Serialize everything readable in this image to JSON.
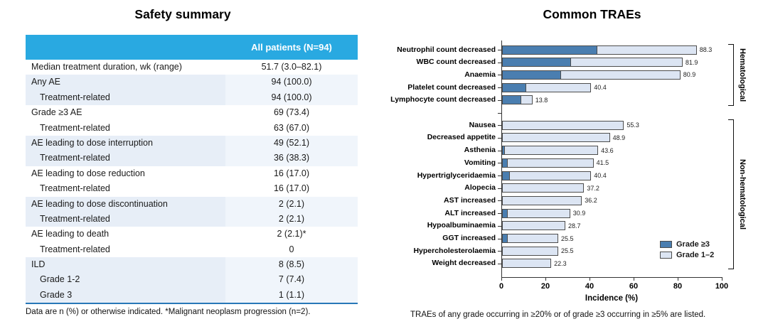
{
  "left_panel": {
    "title": "Safety summary",
    "table": {
      "header": "All patients (N=94)",
      "rows": [
        {
          "label": "Median treatment duration, wk (range)",
          "value": "51.7 (3.0–82.1)",
          "indent": false,
          "shaded": false
        },
        {
          "label": "Any AE",
          "value": "94 (100.0)",
          "indent": false,
          "shaded": true
        },
        {
          "label": "Treatment-related",
          "value": "94 (100.0)",
          "indent": true,
          "shaded": true
        },
        {
          "label": "Grade ≥3 AE",
          "value": "69 (73.4)",
          "indent": false,
          "shaded": false
        },
        {
          "label": "Treatment-related",
          "value": "63 (67.0)",
          "indent": true,
          "shaded": false
        },
        {
          "label": "AE leading to dose interruption",
          "value": "49 (52.1)",
          "indent": false,
          "shaded": true
        },
        {
          "label": "Treatment-related",
          "value": "36 (38.3)",
          "indent": true,
          "shaded": true
        },
        {
          "label": "AE leading to dose reduction",
          "value": "16 (17.0)",
          "indent": false,
          "shaded": false
        },
        {
          "label": "Treatment-related",
          "value": "16 (17.0)",
          "indent": true,
          "shaded": false
        },
        {
          "label": "AE leading to dose discontinuation",
          "value": "2 (2.1)",
          "indent": false,
          "shaded": true
        },
        {
          "label": "Treatment-related",
          "value": "2 (2.1)",
          "indent": true,
          "shaded": true
        },
        {
          "label": "AE leading to death",
          "value": "2 (2.1)*",
          "indent": false,
          "shaded": false
        },
        {
          "label": "Treatment-related",
          "value": "0",
          "indent": true,
          "shaded": false
        },
        {
          "label": "ILD",
          "value": "8 (8.5)",
          "indent": false,
          "shaded": true
        },
        {
          "label": "Grade 1-2",
          "value": "7 (7.4)",
          "indent": true,
          "shaded": true
        },
        {
          "label": "Grade 3",
          "value": "1 (1.1)",
          "indent": true,
          "shaded": true
        }
      ]
    },
    "footnote": "Data are n (%) or otherwise indicated. *Malignant neoplasm progression (n=2)."
  },
  "right_panel": {
    "title": "Common TRAEs",
    "footnote": "TRAEs of any grade occurring in ≥20% or of grade ≥3 occurring in ≥5% are listed."
  },
  "chart_data": {
    "type": "bar",
    "orientation": "horizontal",
    "stacked": true,
    "title": "Common TRAEs",
    "xlabel": "Incidence (%)",
    "xlim": [
      0,
      100
    ],
    "x_ticks": [
      0,
      20,
      40,
      60,
      80,
      100
    ],
    "legend": [
      {
        "name": "Grade ≥3",
        "color": "#4a7eb0"
      },
      {
        "name": "Grade 1–2",
        "color": "#dce5f3"
      }
    ],
    "legend_position": "lower-right",
    "groups": [
      {
        "name": "Hematological",
        "rows": [
          {
            "category": "Neutrophil count decreased",
            "total": 88.3,
            "grade3": 43.0
          },
          {
            "category": "WBC count decreased",
            "total": 81.9,
            "grade3": 31.0
          },
          {
            "category": "Anaemia",
            "total": 80.9,
            "grade3": 26.5
          },
          {
            "category": "Platelet count decreased",
            "total": 40.4,
            "grade3": 10.5
          },
          {
            "category": "Lymphocyte count decreased",
            "total": 13.8,
            "grade3": 8.5
          }
        ]
      },
      {
        "name": "Non-hematological",
        "rows": [
          {
            "category": "Nausea",
            "total": 55.3,
            "grade3": 0
          },
          {
            "category": "Decreased appetite",
            "total": 48.9,
            "grade3": 0
          },
          {
            "category": "Asthenia",
            "total": 43.6,
            "grade3": 1.1
          },
          {
            "category": "Vomiting",
            "total": 41.5,
            "grade3": 2.1
          },
          {
            "category": "Hypertriglyceridaemia",
            "total": 40.4,
            "grade3": 3.2
          },
          {
            "category": "Alopecia",
            "total": 37.2,
            "grade3": 0
          },
          {
            "category": "AST increased",
            "total": 36.2,
            "grade3": 0
          },
          {
            "category": "ALT increased",
            "total": 30.9,
            "grade3": 2.1
          },
          {
            "category": "Hypoalbuminaemia",
            "total": 28.7,
            "grade3": 0
          },
          {
            "category": "GGT increased",
            "total": 25.5,
            "grade3": 2.1
          },
          {
            "category": "Hypercholesterolaemia",
            "total": 25.5,
            "grade3": 0
          },
          {
            "category": "Weight decreased",
            "total": 22.3,
            "grade3": 0
          }
        ]
      }
    ]
  },
  "colors": {
    "table_header_bg": "#29a9e1",
    "table_shaded_label": "#e7eef7",
    "table_shaded_value": "#f0f5fb",
    "table_bottom_rule": "#2878b8",
    "grade3_fill": "#4a7eb0",
    "grade12_fill": "#dce5f3",
    "bar_border": "#4d4d4d"
  }
}
